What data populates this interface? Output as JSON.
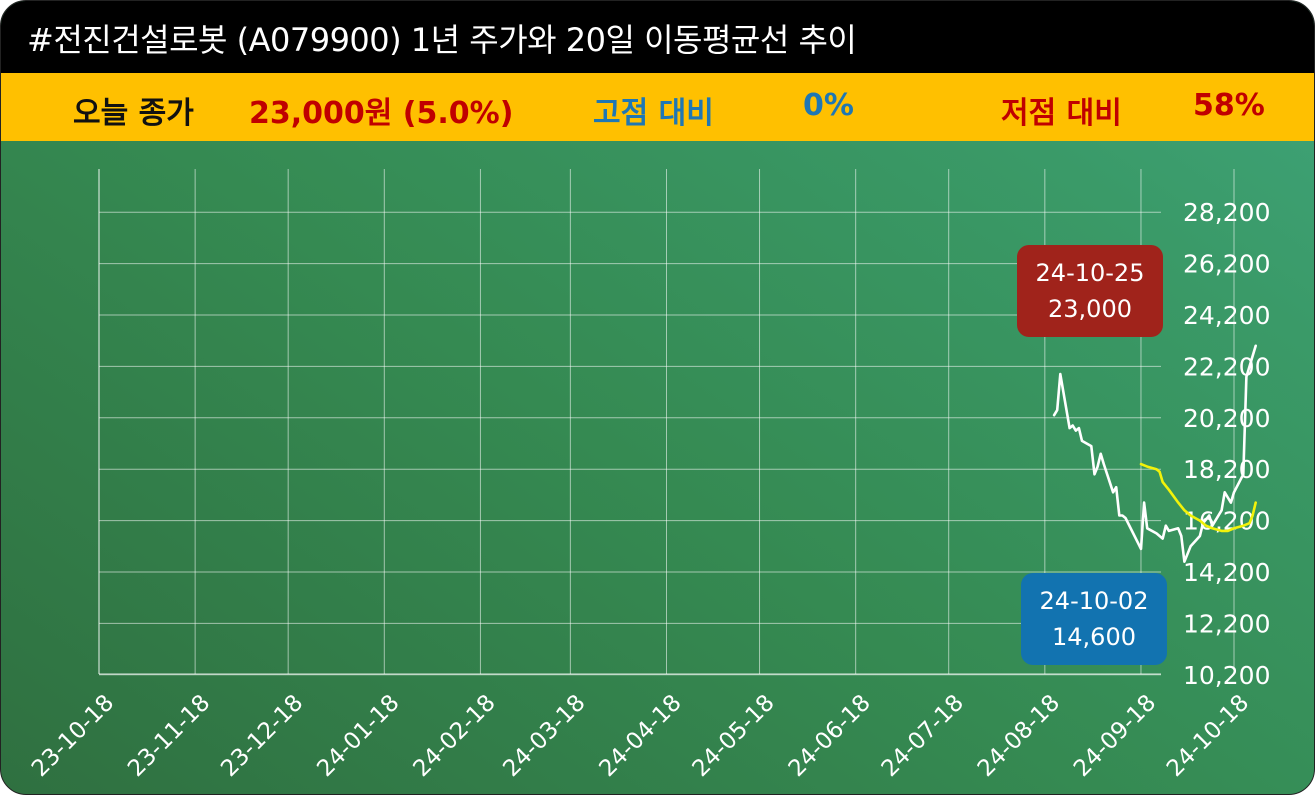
{
  "header": {
    "title": "#전진건설로봇 (A079900) 1년 주가와 20일 이동평균선 추이"
  },
  "summary": {
    "close_label": "오늘 종가",
    "close_value": "23,000원 (5.0%)",
    "high_label": "고점 대비",
    "high_value": "0%",
    "low_label": "저점 대비",
    "low_value": "58%"
  },
  "colors": {
    "close_label": "#111111",
    "close_value": "#c00000",
    "high": "#1f77b4",
    "low": "#c00000",
    "price_line": "#ffffff",
    "ma_line": "#f2f20a",
    "high_badge": "#a0231b",
    "low_badge": "#1273b0"
  },
  "chart_data": {
    "type": "line",
    "x_ticks": [
      "23-10-18",
      "23-11-18",
      "23-12-18",
      "24-01-18",
      "24-02-18",
      "24-03-18",
      "24-04-18",
      "24-05-18",
      "24-06-18",
      "24-07-18",
      "24-08-18",
      "24-09-18",
      "24-10-18"
    ],
    "y_ticks": [
      10200,
      12200,
      14200,
      16200,
      18200,
      20200,
      22200,
      24200,
      26200,
      28200
    ],
    "ylim": [
      10200,
      28200
    ],
    "xlim": [
      "2023-10-18",
      "2024-10-26"
    ],
    "grid": true,
    "series": [
      {
        "points": [
          [
            "2024-08-21",
            20300
          ],
          [
            "2024-08-22",
            20500
          ],
          [
            "2024-08-23",
            21900
          ],
          [
            "2024-08-26",
            19800
          ],
          [
            "2024-08-27",
            19900
          ],
          [
            "2024-08-28",
            19700
          ],
          [
            "2024-08-29",
            19800
          ],
          [
            "2024-08-30",
            19300
          ],
          [
            "2024-09-02",
            19100
          ],
          [
            "2024-09-03",
            18000
          ],
          [
            "2024-09-04",
            18300
          ],
          [
            "2024-09-05",
            18800
          ],
          [
            "2024-09-06",
            18400
          ],
          [
            "2024-09-09",
            17300
          ],
          [
            "2024-09-10",
            17500
          ],
          [
            "2024-09-11",
            16400
          ],
          [
            "2024-09-12",
            16400
          ],
          [
            "2024-09-13",
            16300
          ],
          [
            "2024-09-18",
            15100
          ],
          [
            "2024-09-19",
            16900
          ],
          [
            "2024-09-20",
            15900
          ],
          [
            "2024-09-23",
            15700
          ],
          [
            "2024-09-24",
            15600
          ],
          [
            "2024-09-25",
            15500
          ],
          [
            "2024-09-26",
            16000
          ],
          [
            "2024-09-27",
            15800
          ],
          [
            "2024-09-30",
            15900
          ],
          [
            "2024-10-01",
            15600
          ],
          [
            "2024-10-02",
            14600
          ],
          [
            "2024-10-04",
            15200
          ],
          [
            "2024-10-07",
            15600
          ],
          [
            "2024-10-08",
            16100
          ],
          [
            "2024-10-10",
            16400
          ],
          [
            "2024-10-11",
            16000
          ],
          [
            "2024-10-14",
            16600
          ],
          [
            "2024-10-15",
            17300
          ],
          [
            "2024-10-16",
            17100
          ],
          [
            "2024-10-17",
            16900
          ],
          [
            "2024-10-18",
            17300
          ],
          [
            "2024-10-21",
            18000
          ],
          [
            "2024-10-22",
            21800
          ],
          [
            "2024-10-25",
            23000
          ]
        ]
      },
      {
        "points": [
          [
            "2024-09-18",
            18400
          ],
          [
            "2024-09-20",
            18300
          ],
          [
            "2024-09-23",
            18200
          ],
          [
            "2024-09-24",
            18100
          ],
          [
            "2024-09-25",
            17700
          ],
          [
            "2024-09-27",
            17400
          ],
          [
            "2024-09-30",
            16900
          ],
          [
            "2024-10-02",
            16600
          ],
          [
            "2024-10-04",
            16400
          ],
          [
            "2024-10-07",
            16200
          ],
          [
            "2024-10-09",
            16000
          ],
          [
            "2024-10-11",
            15900
          ],
          [
            "2024-10-14",
            15800
          ],
          [
            "2024-10-16",
            15800
          ],
          [
            "2024-10-18",
            15900
          ],
          [
            "2024-10-21",
            16000
          ],
          [
            "2024-10-23",
            16100
          ],
          [
            "2024-10-24",
            16400
          ],
          [
            "2024-10-25",
            16900
          ]
        ]
      }
    ],
    "annotations": [
      {
        "kind": "high",
        "date_label": "24-10-25",
        "value_label": "23,000"
      },
      {
        "kind": "low",
        "date_label": "24-10-02",
        "value_label": "14,600"
      }
    ]
  }
}
